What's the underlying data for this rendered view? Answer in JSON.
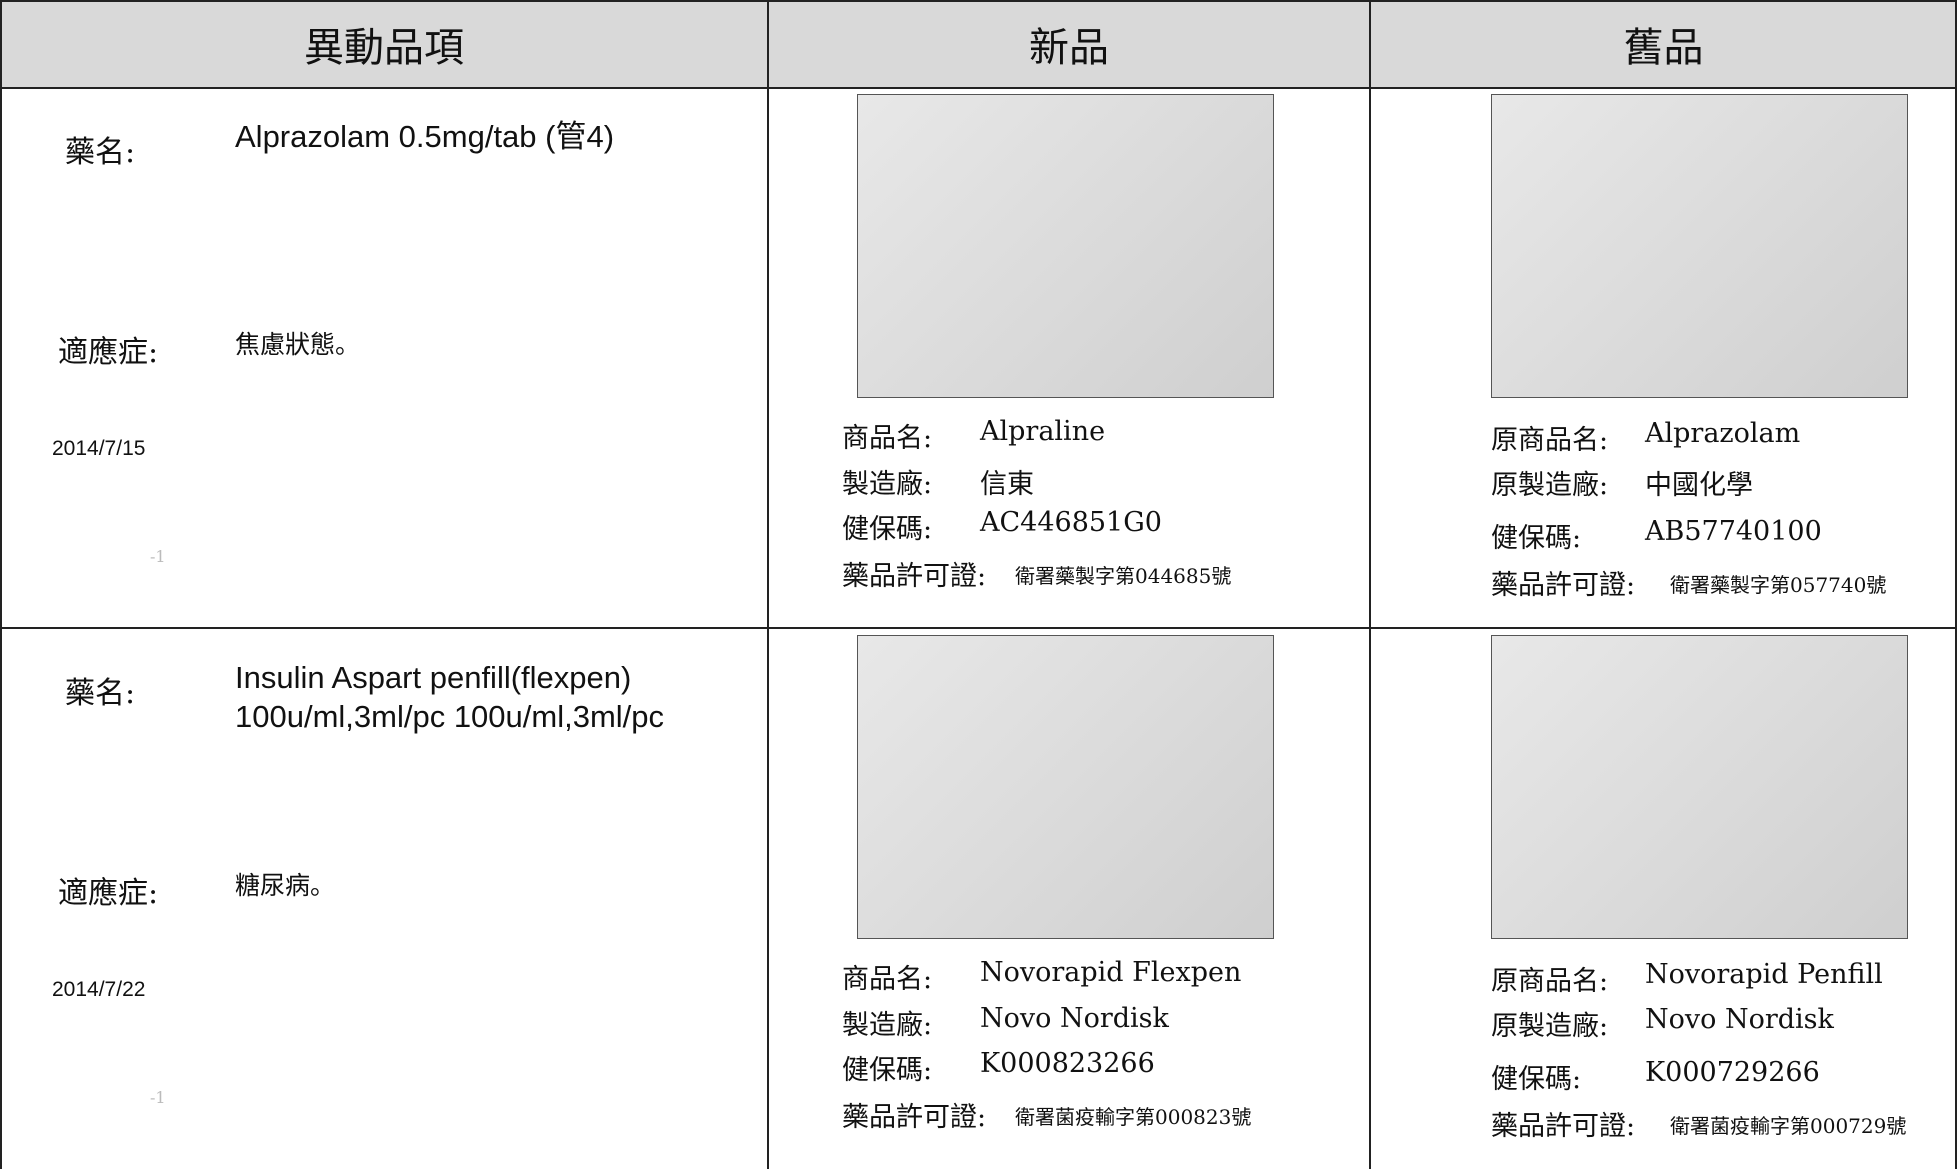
{
  "table": {
    "headers": [
      "異動品項",
      "新品",
      "舊品"
    ],
    "rows": [
      {
        "drug_label": "藥名:",
        "drug": "Alprazolam 0.5mg/tab (管4)",
        "indication_label": "適應症:",
        "indication": "焦慮狀態。",
        "date": "2014/7/15",
        "note": "-1",
        "new": [
          [
            "商品名:",
            "Alpraline"
          ],
          [
            "製造廠:",
            "信東"
          ],
          [
            "健保碼:",
            "AC446851G0"
          ],
          [
            "藥品許可證:",
            "衛署藥製字第044685號"
          ]
        ],
        "old": [
          [
            "原商品名:",
            "Alprazolam"
          ],
          [
            "原製造廠:",
            "中國化學"
          ],
          [
            "健保碼:",
            "AB57740100"
          ],
          [
            "藥品許可證:",
            "衛署藥製字第057740號"
          ]
        ]
      },
      {
        "drug_label": "藥名:",
        "drug": "Insulin Aspart penfill(flexpen) 100u/ml,3ml/pc 100u/ml,3ml/pc",
        "indication_label": "適應症:",
        "indication": "糖尿病。",
        "date": "2014/7/22",
        "note": "-1",
        "new": [
          [
            "商品名:",
            "Novorapid Flexpen"
          ],
          [
            "製造廠:",
            "Novo Nordisk"
          ],
          [
            "健保碼:",
            "K000823266"
          ],
          [
            "藥品許可證:",
            "衛署菌疫輸字第000823號"
          ]
        ],
        "old": [
          [
            "原商品名:",
            "Novorapid Penfill"
          ],
          [
            "原製造廠:",
            "Novo Nordisk"
          ],
          [
            "健保碼:",
            "K000729266"
          ],
          [
            "藥品許可證:",
            "衛署菌疫輸字第000729號"
          ]
        ]
      }
    ]
  }
}
